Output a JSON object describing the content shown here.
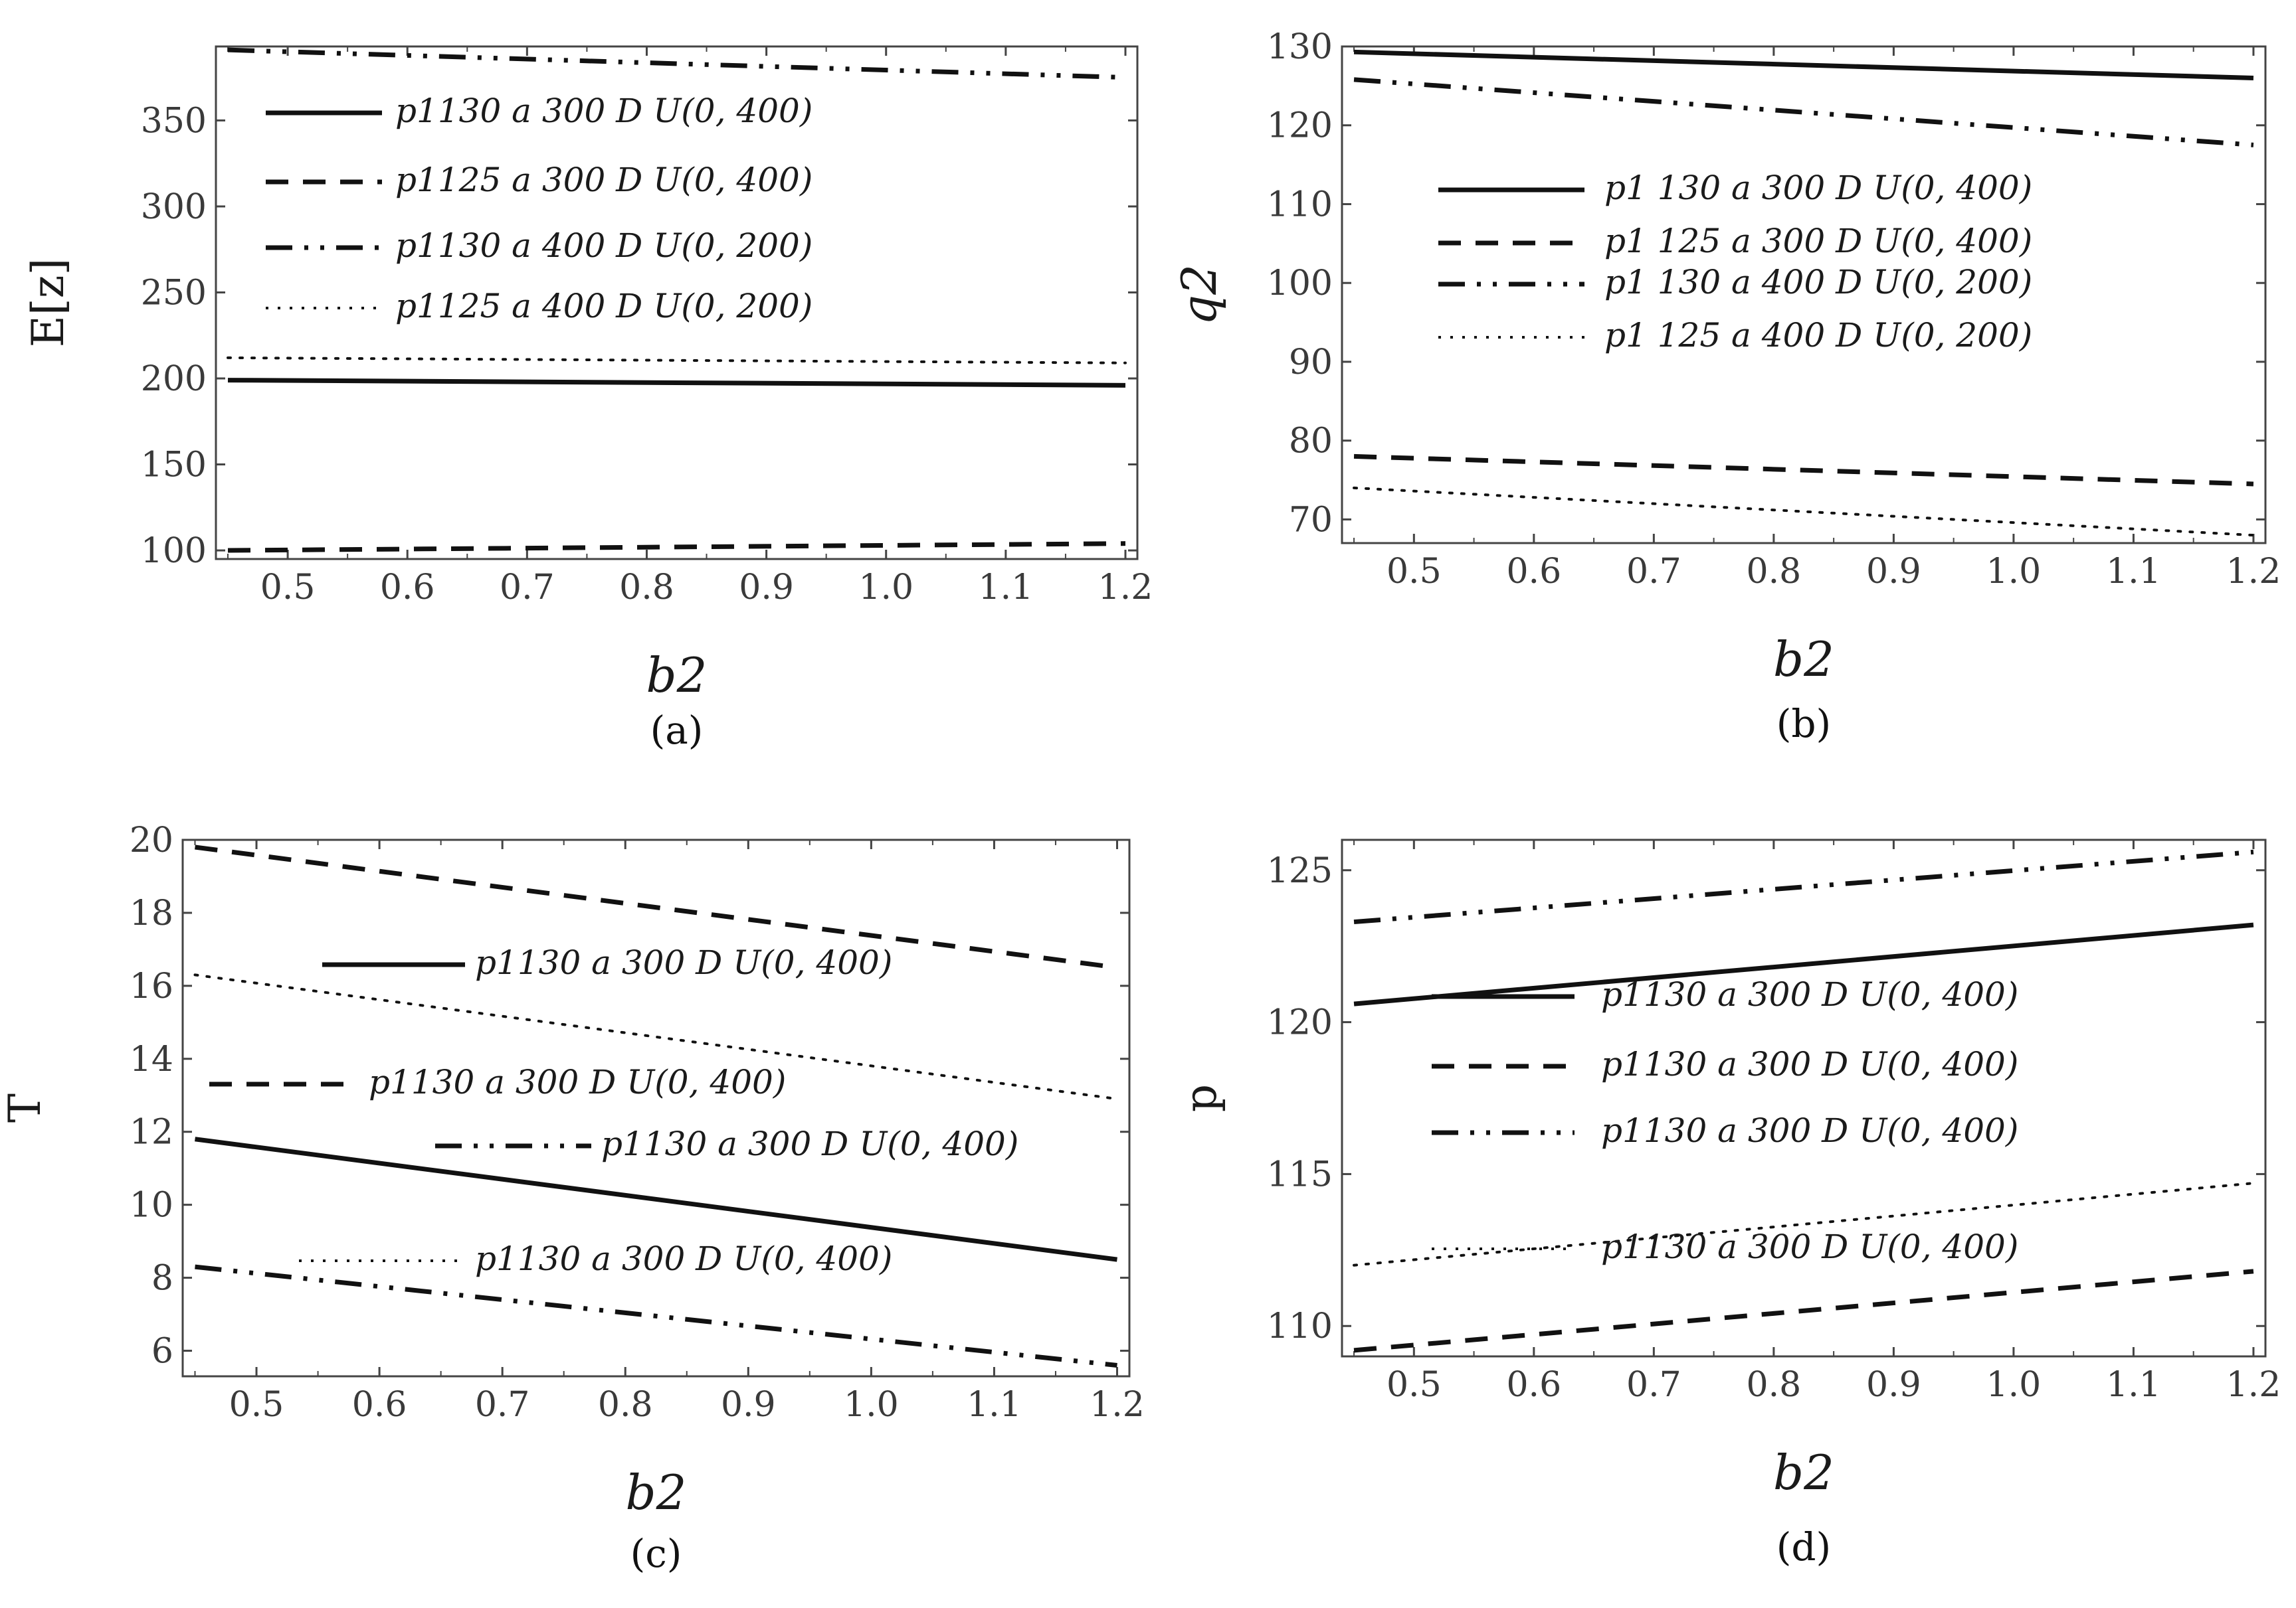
{
  "chart_data": [
    {
      "type": "line",
      "caption": "a",
      "xlabel": "b2",
      "ylabel": "E[z]",
      "xlim": [
        0.44,
        1.21
      ],
      "ylim": [
        95,
        393
      ],
      "xticks": [
        "0.5",
        "0.6",
        "0.7",
        "0.8",
        "0.9",
        "1.0",
        "1.1",
        "1.2"
      ],
      "yticks": [
        "100",
        "150",
        "200",
        "250",
        "300",
        "350"
      ],
      "legend": [
        "p1130 a 300 D U(0, 400)",
        "p1125 a 300 D U(0, 400)",
        "p1130 a 400 D U(0, 200)",
        "p1125 a 400 D U(0, 200)"
      ],
      "series": [
        {
          "style": "solid",
          "x": [
            0.45,
            1.2
          ],
          "y": [
            199,
            196
          ]
        },
        {
          "style": "dashed",
          "x": [
            0.45,
            1.2
          ],
          "y": [
            100,
            104
          ]
        },
        {
          "style": "dashdotdot",
          "x": [
            0.45,
            1.2
          ],
          "y": [
            391,
            375
          ]
        },
        {
          "style": "dotted",
          "x": [
            0.45,
            1.2
          ],
          "y": [
            212,
            209
          ]
        }
      ]
    },
    {
      "type": "line",
      "caption": "b",
      "xlabel": "b2",
      "ylabel": "q2",
      "xlim": [
        0.44,
        1.21
      ],
      "ylim": [
        67,
        130
      ],
      "xticks": [
        "0.5",
        "0.6",
        "0.7",
        "0.8",
        "0.9",
        "1.0",
        "1.1",
        "1.2"
      ],
      "yticks": [
        "70",
        "80",
        "90",
        "100",
        "110",
        "120",
        "130"
      ],
      "legend": [
        "p1 130 a 300 D U(0, 400)",
        "p1 125 a 300 D U(0, 400)",
        "p1 130 a 400 D U(0, 200)",
        "p1 125 a 400 D U(0, 200)"
      ],
      "series": [
        {
          "style": "solid",
          "x": [
            0.45,
            1.2
          ],
          "y": [
            129.3,
            126
          ]
        },
        {
          "style": "dashed",
          "x": [
            0.45,
            1.2
          ],
          "y": [
            78,
            74.5
          ]
        },
        {
          "style": "dashdotdot",
          "x": [
            0.45,
            1.2
          ],
          "y": [
            125.8,
            117.5
          ]
        },
        {
          "style": "dotted",
          "x": [
            0.45,
            1.2
          ],
          "y": [
            74,
            68
          ]
        }
      ]
    },
    {
      "type": "line",
      "caption": "c",
      "xlabel": "b2",
      "ylabel": "T",
      "xlim": [
        0.44,
        1.21
      ],
      "ylim": [
        5.3,
        20
      ],
      "xticks": [
        "0.5",
        "0.6",
        "0.7",
        "0.8",
        "0.9",
        "1.0",
        "1.1",
        "1.2"
      ],
      "yticks": [
        "6",
        "8",
        "10",
        "12",
        "14",
        "16",
        "18",
        "20"
      ],
      "legend": [
        "p1130 a 300 D U(0, 400)",
        "p1130 a 300 D U(0, 400)",
        "p1130 a 300 D U(0, 400)",
        "p1130 a 300 D U(0, 400)"
      ],
      "series": [
        {
          "style": "solid",
          "x": [
            0.45,
            1.2
          ],
          "y": [
            11.8,
            8.5
          ]
        },
        {
          "style": "dashed",
          "x": [
            0.45,
            1.2
          ],
          "y": [
            19.8,
            16.5
          ]
        },
        {
          "style": "dashdotdot",
          "x": [
            0.45,
            1.2
          ],
          "y": [
            8.3,
            5.6
          ]
        },
        {
          "style": "dotted",
          "x": [
            0.45,
            1.2
          ],
          "y": [
            16.3,
            12.9
          ]
        }
      ]
    },
    {
      "type": "line",
      "caption": "d",
      "xlabel": "b2",
      "ylabel": "p",
      "xlim": [
        0.44,
        1.21
      ],
      "ylim": [
        109,
        126
      ],
      "xticks": [
        "0.5",
        "0.6",
        "0.7",
        "0.8",
        "0.9",
        "1.0",
        "1.1",
        "1.2"
      ],
      "yticks": [
        "110",
        "115",
        "120",
        "125"
      ],
      "legend": [
        "p1130 a 300 D U(0, 400)",
        "p1130 a 300 D U(0, 400)",
        "p1130 a 300 D U(0, 400)",
        "p1130 a 300 D U(0, 400)"
      ],
      "series": [
        {
          "style": "solid",
          "x": [
            0.45,
            1.2
          ],
          "y": [
            120.6,
            123.2
          ]
        },
        {
          "style": "dashed",
          "x": [
            0.45,
            1.2
          ],
          "y": [
            109.2,
            111.8
          ]
        },
        {
          "style": "dashdotdot",
          "x": [
            0.45,
            1.2
          ],
          "y": [
            123.3,
            125.6
          ]
        },
        {
          "style": "dotted",
          "x": [
            0.45,
            1.2
          ],
          "y": [
            112,
            114.7
          ]
        }
      ]
    }
  ]
}
